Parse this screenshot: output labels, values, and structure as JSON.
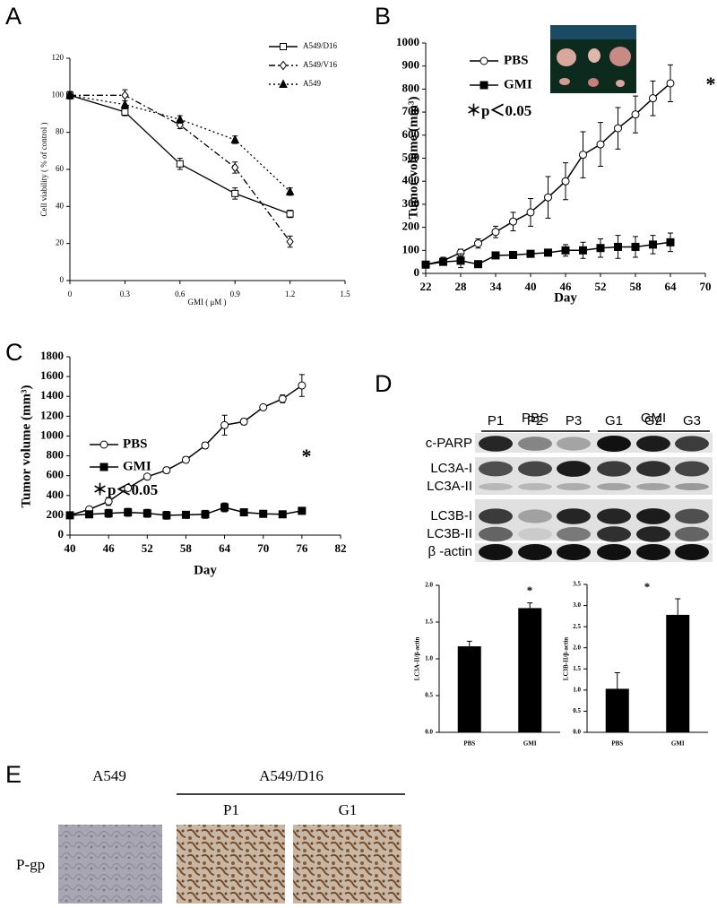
{
  "panel_labels": [
    "A",
    "B",
    "C",
    "D",
    "E"
  ],
  "chart_data": [
    {
      "type": "line",
      "xlabel": "GMI ( μM )",
      "ylabel": "Cell viability ( % of control )",
      "x": [
        0,
        0.3,
        0.6,
        0.9,
        1.2
      ],
      "xlim": [
        0,
        1.5
      ],
      "xticks": [
        0,
        0.3,
        0.6,
        0.9,
        1.2,
        1.5
      ],
      "ylim": [
        0,
        120
      ],
      "yticks": [
        0,
        20,
        40,
        60,
        80,
        100,
        120
      ],
      "legend": "upper right",
      "series": [
        {
          "name": "A549/D16",
          "color": "#000000",
          "marker": "square",
          "dash": "solid",
          "values": [
            100,
            91,
            63,
            47,
            36
          ],
          "errors": [
            2,
            2,
            3,
            3,
            2
          ]
        },
        {
          "name": "A549/V16",
          "color": "#000000",
          "marker": "diamond",
          "dash": "dashdot",
          "values": [
            100,
            100,
            84,
            61,
            21
          ],
          "errors": [
            2,
            3,
            2,
            3,
            3
          ]
        },
        {
          "name": "A549",
          "color": "#000000",
          "marker": "triangle",
          "dash": "dotted",
          "values": [
            100,
            95,
            87,
            76,
            48
          ],
          "errors": [
            2,
            2,
            2,
            2,
            2
          ]
        }
      ]
    },
    {
      "type": "line",
      "xlabel": "Day",
      "ylabel": "Tumor volume (mm³)",
      "x": [
        22,
        25,
        28,
        31,
        34,
        37,
        40,
        43,
        46,
        49,
        52,
        55,
        58,
        61,
        64
      ],
      "xlim": [
        22,
        70
      ],
      "xticks": [
        22,
        28,
        34,
        40,
        46,
        52,
        58,
        64,
        70
      ],
      "ylim": [
        0,
        1000
      ],
      "yticks": [
        0,
        100,
        200,
        300,
        400,
        500,
        600,
        700,
        800,
        900,
        1000
      ],
      "legend": "upper left",
      "annotations": [
        "＊p＜0.05",
        "*"
      ],
      "series": [
        {
          "name": "PBS",
          "color": "#000000",
          "marker": "circle",
          "dash": "solid",
          "values": [
            38,
            55,
            90,
            130,
            180,
            225,
            265,
            330,
            400,
            515,
            560,
            630,
            690,
            760,
            825
          ],
          "errors": [
            10,
            15,
            15,
            20,
            25,
            40,
            60,
            90,
            80,
            100,
            95,
            90,
            80,
            75,
            80
          ]
        },
        {
          "name": "GMI",
          "color": "#000000",
          "marker": "filled-square",
          "dash": "solid",
          "values": [
            38,
            50,
            55,
            40,
            78,
            80,
            85,
            90,
            100,
            100,
            110,
            115,
            115,
            125,
            135
          ],
          "errors": [
            10,
            15,
            30,
            10,
            10,
            10,
            10,
            10,
            25,
            35,
            40,
            50,
            45,
            40,
            40
          ]
        }
      ]
    },
    {
      "type": "line",
      "xlabel": "Day",
      "ylabel": "Tumor volume (mm³)",
      "x": [
        40,
        43,
        46,
        49,
        52,
        55,
        58,
        61,
        64,
        67,
        70,
        73,
        76
      ],
      "xlim": [
        40,
        82
      ],
      "xticks": [
        40,
        46,
        52,
        58,
        64,
        70,
        76,
        82
      ],
      "ylim": [
        0,
        1800
      ],
      "yticks": [
        0,
        200,
        400,
        600,
        800,
        1000,
        1200,
        1400,
        1600,
        1800
      ],
      "legend": "upper left",
      "annotations": [
        "＊p＜0.05",
        "*"
      ],
      "series": [
        {
          "name": "PBS",
          "color": "#000000",
          "marker": "circle",
          "dash": "solid",
          "values": [
            200,
            260,
            340,
            475,
            590,
            655,
            760,
            905,
            1110,
            1145,
            1290,
            1375,
            1510
          ],
          "errors": [
            10,
            25,
            40,
            30,
            25,
            30,
            30,
            30,
            100,
            30,
            25,
            40,
            110
          ]
        },
        {
          "name": "GMI",
          "color": "#000000",
          "marker": "filled-square",
          "dash": "solid",
          "values": [
            200,
            210,
            220,
            230,
            220,
            200,
            205,
            210,
            280,
            230,
            215,
            210,
            245
          ],
          "errors": [
            10,
            25,
            40,
            40,
            40,
            40,
            30,
            40,
            45,
            15,
            10,
            15,
            15
          ]
        }
      ]
    },
    {
      "type": "bar",
      "ylabel": "LC3A-II/β-actin",
      "categories": [
        "PBS",
        "GMI"
      ],
      "values": [
        1.17,
        1.69
      ],
      "errors": [
        0.07,
        0.07
      ],
      "color": "#000000",
      "ylim": [
        0,
        2
      ],
      "yticks": [
        {
          "value": 0,
          "label": "0.0"
        },
        0.5,
        {
          "value": 1,
          "label": "1.0"
        },
        1.5,
        {
          "value": 2,
          "label": "2.0"
        }
      ],
      "annotations": [
        "*"
      ]
    },
    {
      "type": "bar",
      "ylabel": "LC3B-II/β-actin",
      "categories": [
        "PBS",
        "GMI"
      ],
      "values": [
        1.03,
        2.78
      ],
      "errors": [
        0.38,
        0.38
      ],
      "color": "#000000",
      "ylim": [
        0,
        3.5
      ],
      "yticks": [
        {
          "value": 0,
          "label": "0.0"
        },
        0.5,
        {
          "value": 1,
          "label": "1.0"
        },
        1.5,
        {
          "value": 2,
          "label": "2.0"
        },
        2.5,
        {
          "value": 3,
          "label": "3.0"
        },
        3.5
      ],
      "annotations": [
        "*"
      ]
    }
  ],
  "blot": {
    "groups": [
      "PBS",
      "GMI"
    ],
    "lanes": [
      "P1",
      "P2",
      "P3",
      "G1",
      "G2",
      "G3"
    ],
    "rows": [
      "c-PARP",
      "LC3A-I",
      "LC3A-II",
      "LC3B-I",
      "LC3B-II",
      "β -actin"
    ]
  },
  "histology": {
    "columns": [
      "A549",
      "A549/D16"
    ],
    "subcolumns": [
      "P1",
      "G1"
    ],
    "row": "P-gp"
  }
}
